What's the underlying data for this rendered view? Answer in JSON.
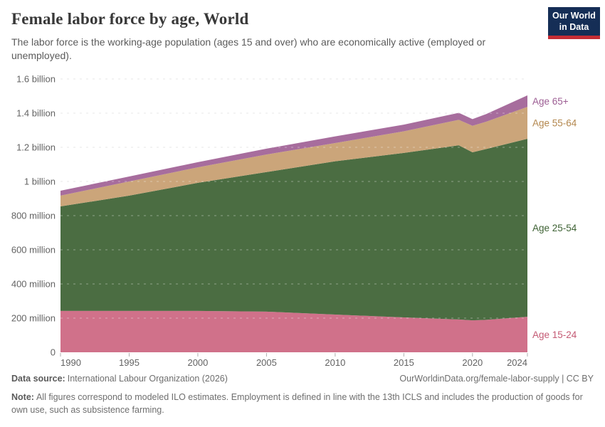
{
  "header": {
    "title": "Female labor force by age, World",
    "subtitle": "The labor force is the working-age population (ages 15 and over) who are economically active (employed or unemployed).",
    "logo": {
      "line1": "Our World",
      "line2": "in Data",
      "bg_color": "#152e56",
      "accent_color": "#c42d35"
    }
  },
  "chart_data": {
    "type": "area",
    "stacked": true,
    "title": "Female labor force by age, World",
    "xlabel": "",
    "ylabel": "",
    "unit": "million persons",
    "ylim": [
      0,
      1600
    ],
    "grid": "dashed",
    "legend_position": "right-edge-labels",
    "x": [
      1990,
      1995,
      2000,
      2005,
      2010,
      2015,
      2019,
      2020,
      2021,
      2024
    ],
    "series": [
      {
        "name": "Age 15-24",
        "color": "#d0718a",
        "label_color": "#c45a74",
        "values": [
          242,
          242,
          242,
          238,
          221,
          204,
          192,
          187,
          190,
          208
        ]
      },
      {
        "name": "Age 25-54",
        "color": "#4b6d42",
        "label_color": "#3e6234",
        "values": [
          612,
          675,
          750,
          817,
          897,
          963,
          1020,
          984,
          1000,
          1042
        ]
      },
      {
        "name": "Age 55-64",
        "color": "#cba57a",
        "label_color": "#b3874e",
        "values": [
          63,
          83,
          91,
          103,
          107,
          127,
          149,
          155,
          160,
          187
        ]
      },
      {
        "name": "Age 65+",
        "color": "#a76d9d",
        "label_color": "#9c5d93",
        "values": [
          29,
          29,
          30,
          34,
          39,
          39,
          41,
          39,
          45,
          67
        ]
      }
    ],
    "x_axis": {
      "ticks": [
        1990,
        1995,
        2000,
        2005,
        2010,
        2015,
        2020,
        2024
      ]
    },
    "y_axis": {
      "ticks": [
        {
          "v": 0,
          "label": "0"
        },
        {
          "v": 200,
          "label": "200 million"
        },
        {
          "v": 400,
          "label": "400 million"
        },
        {
          "v": 600,
          "label": "600 million"
        },
        {
          "v": 800,
          "label": "800 million"
        },
        {
          "v": 1000,
          "label": "1 billion"
        },
        {
          "v": 1200,
          "label": "1.2 billion"
        },
        {
          "v": 1400,
          "label": "1.4 billion"
        },
        {
          "v": 1600,
          "label": "1.6 billion"
        }
      ]
    },
    "colors": {
      "gridline": "#d9d9d9",
      "axis_text": "#636363",
      "tick_mark": "#b0b0b0"
    }
  },
  "footer": {
    "data_source_label": "Data source:",
    "data_source": "International Labour Organization (2026)",
    "link": "OurWorldinData.org/female-labor-supply | CC BY",
    "note_label": "Note:",
    "note": "All figures correspond to modeled ILO estimates. Employment is defined in line with the 13th ICLS and includes the production of goods for own use, such as subsistence farming."
  }
}
